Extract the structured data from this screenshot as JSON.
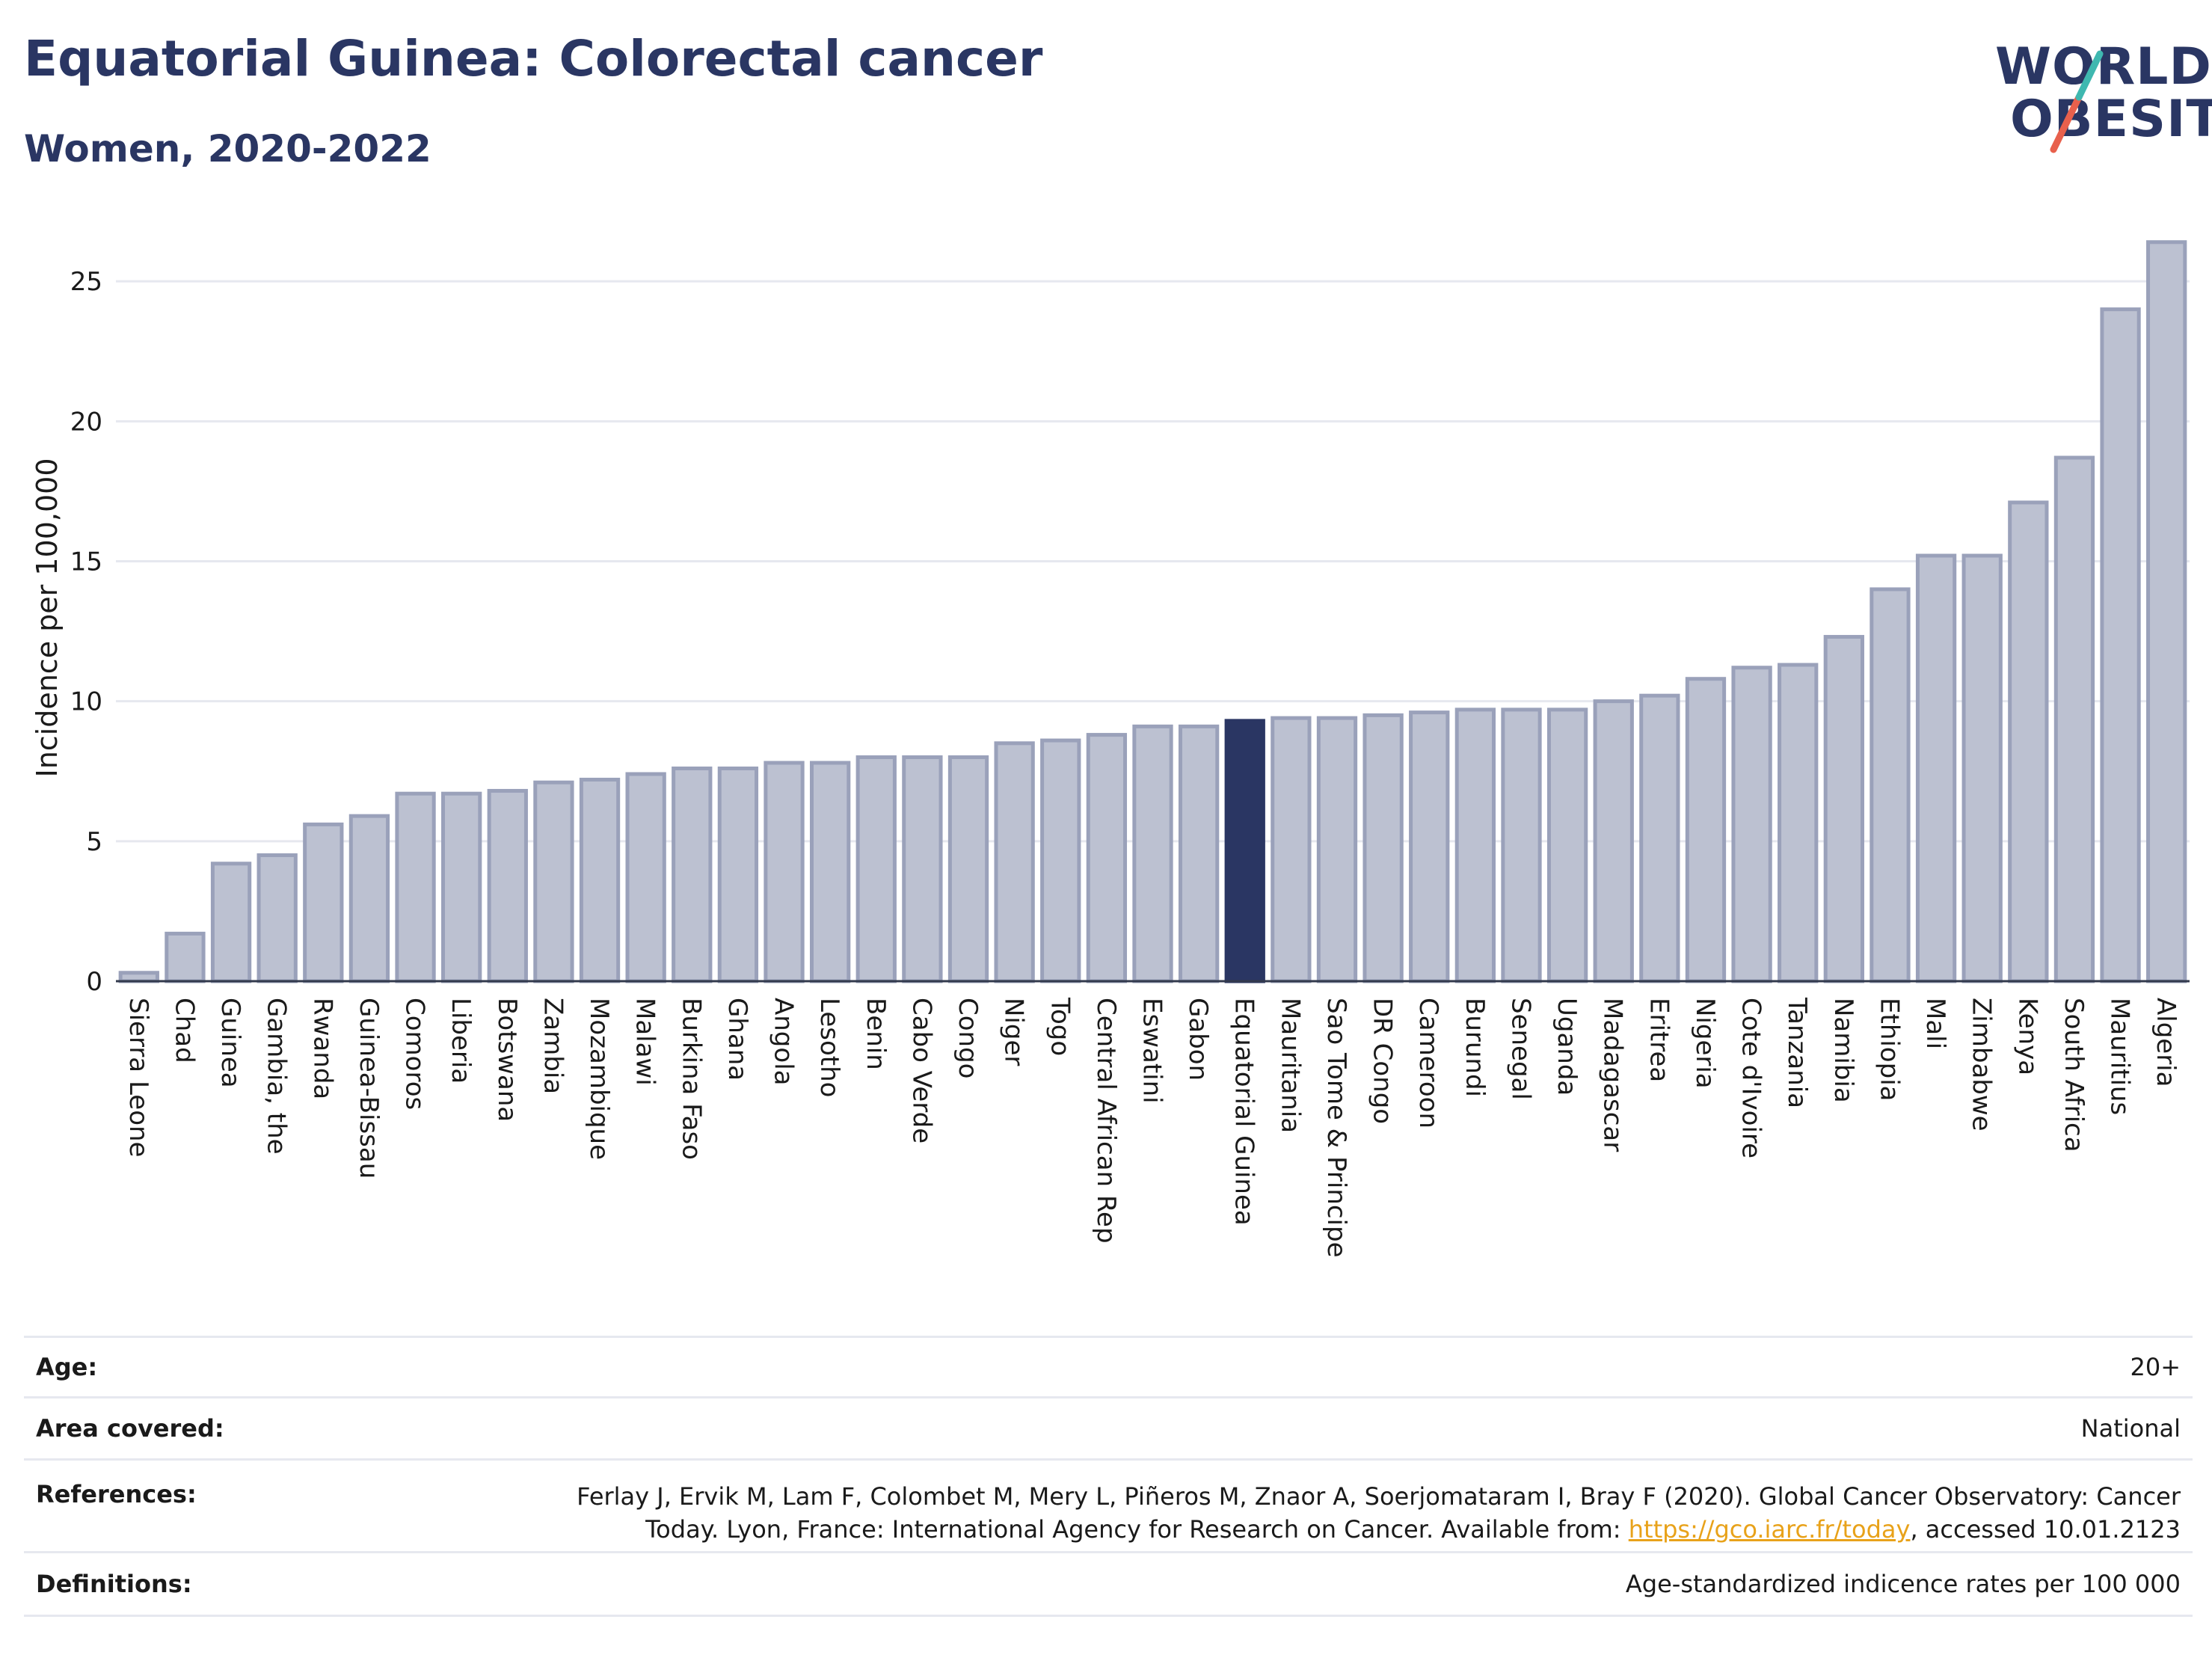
{
  "header": {
    "title": "Equatorial Guinea: Colorectal cancer",
    "subtitle": "Women, 2020-2022"
  },
  "logo": {
    "line1": "WORLD",
    "line2": "OBESITY",
    "colors": {
      "text": "#2a3663",
      "slash_top": "#3fb8b0",
      "slash_bottom": "#e8604c"
    }
  },
  "colors": {
    "highlight_bar": "#2a3663",
    "other_bar_fill": "#bcc1d1",
    "other_bar_stroke": "#9aa1ba",
    "grid": "#e6e8ef",
    "link": "#e8a21a"
  },
  "chart_data": {
    "type": "bar",
    "title": "",
    "xlabel": "",
    "ylabel": "Incidence per 100,000",
    "ylim": [
      0,
      26.5
    ],
    "yticks": [
      0,
      5,
      10,
      15,
      20,
      25
    ],
    "grid": true,
    "highlight": "Equatorial Guinea",
    "categories": [
      "Sierra Leone",
      "Chad",
      "Guinea",
      "Gambia, the",
      "Rwanda",
      "Guinea-Bissau",
      "Comoros",
      "Liberia",
      "Botswana",
      "Zambia",
      "Mozambique",
      "Malawi",
      "Burkina Faso",
      "Ghana",
      "Angola",
      "Lesotho",
      "Benin",
      "Cabo Verde",
      "Congo",
      "Niger",
      "Togo",
      "Central African Rep",
      "Eswatini",
      "Gabon",
      "Equatorial Guinea",
      "Mauritania",
      "Sao Tome & Principe",
      "DR Congo",
      "Cameroon",
      "Burundi",
      "Senegal",
      "Uganda",
      "Madagascar",
      "Eritrea",
      "Nigeria",
      "Cote d'Ivoire",
      "Tanzania",
      "Namibia",
      "Ethiopia",
      "Mali",
      "Zimbabwe",
      "Kenya",
      "South Africa",
      "Mauritius",
      "Algeria"
    ],
    "values": [
      0.3,
      1.7,
      4.2,
      4.5,
      5.6,
      5.9,
      6.7,
      6.7,
      6.8,
      7.1,
      7.2,
      7.4,
      7.6,
      7.6,
      7.8,
      7.8,
      8.0,
      8.0,
      8.0,
      8.5,
      8.6,
      8.8,
      9.1,
      9.1,
      9.3,
      9.4,
      9.4,
      9.5,
      9.6,
      9.7,
      9.7,
      9.7,
      10.0,
      10.2,
      10.8,
      11.2,
      11.3,
      12.3,
      14.0,
      15.2,
      15.2,
      17.1,
      18.7,
      24.0,
      26.4
    ]
  },
  "info": {
    "age_label": "Age:",
    "age_value": "20+",
    "area_label": "Area covered:",
    "area_value": "National",
    "references_label": "References:",
    "references_line1": "Ferlay J, Ervik M, Lam F, Colombet M, Mery L, Piñeros M, Znaor A, Soerjomataram I, Bray F (2020). Global Cancer Observatory: Cancer",
    "references_line2_prefix": "Today. Lyon, France: International Agency for Research on Cancer. Available from: ",
    "references_link": "https://gco.iarc.fr/today",
    "references_line2_suffix": ", accessed 10.01.2123",
    "definitions_label": "Definitions:",
    "definitions_value": "Age-standardized indicence rates per 100 000"
  }
}
